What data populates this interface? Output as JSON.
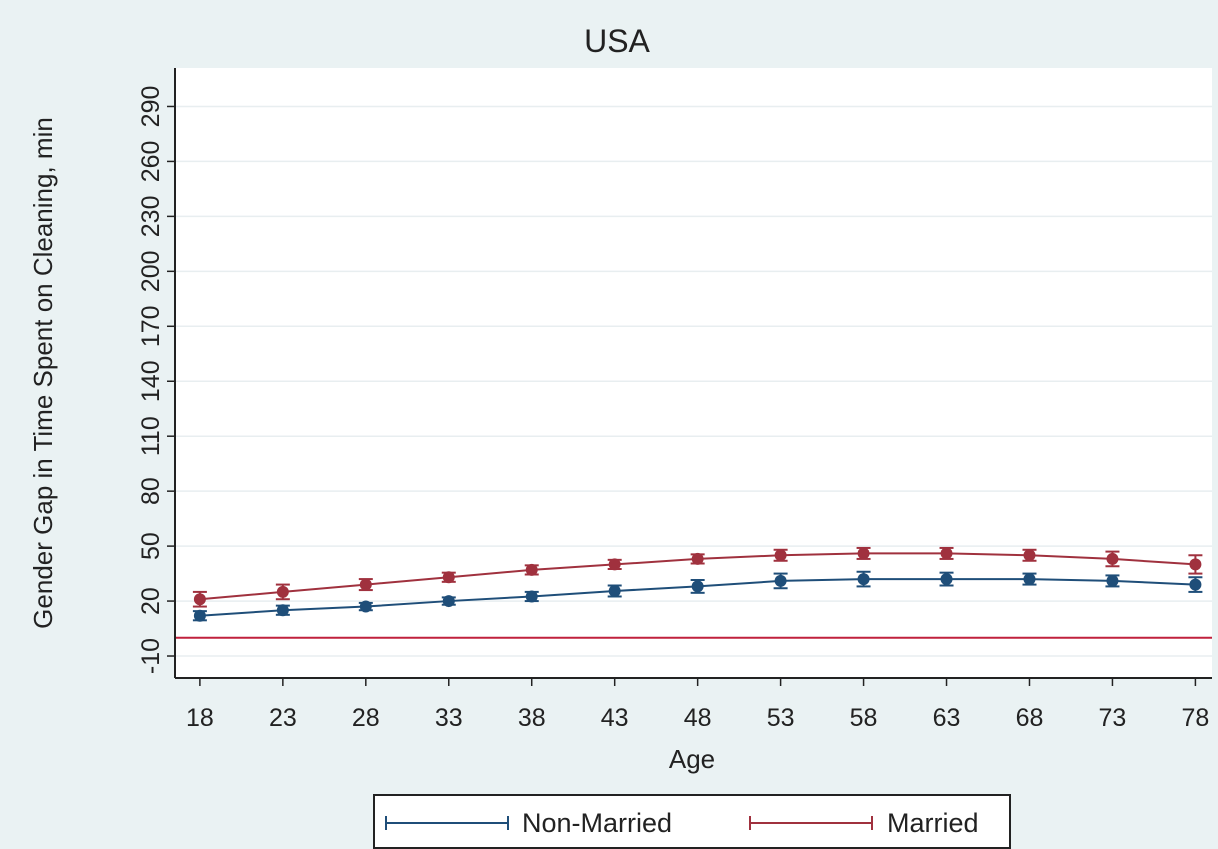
{
  "chart_data": {
    "type": "line",
    "title": "USA",
    "xlabel": "Age",
    "ylabel": "Gender Gap in Time Spent on Cleaning, min",
    "x": [
      18,
      23,
      28,
      33,
      38,
      43,
      48,
      53,
      58,
      63,
      68,
      73,
      78
    ],
    "x_tick_labels": [
      "18",
      "23",
      "28",
      "33",
      "38",
      "43",
      "48",
      "53",
      "58",
      "63",
      "68",
      "73",
      "78"
    ],
    "y_tick_labels": [
      "-10",
      "20",
      "50",
      "80",
      "110",
      "140",
      "170",
      "200",
      "230",
      "260",
      "290"
    ],
    "y_ticks": [
      -10,
      20,
      50,
      80,
      110,
      140,
      170,
      200,
      230,
      260,
      290
    ],
    "xlim": [
      16.5,
      79
    ],
    "ylim": [
      -22,
      311
    ],
    "reference_line_y": 0,
    "series": [
      {
        "name": "Non-Married",
        "values": [
          12,
          15,
          17,
          20,
          22.5,
          25.5,
          28,
          31,
          32,
          32,
          32,
          31,
          29
        ],
        "error": [
          2.5,
          2.5,
          2,
          2,
          2.5,
          3,
          3.5,
          4,
          4,
          3.5,
          3,
          3,
          4
        ],
        "color": "#1f4e79"
      },
      {
        "name": "Married",
        "values": [
          21,
          25,
          29,
          33,
          37,
          40,
          43,
          45,
          46,
          46,
          45,
          43,
          40
        ],
        "error": [
          4,
          4,
          3,
          2.5,
          2.5,
          2.5,
          2.5,
          3,
          3,
          3,
          3,
          4,
          5
        ],
        "color": "#a0313e"
      }
    ],
    "grid": true,
    "legend_position": "bottom"
  },
  "colors": {
    "background": "#eaf2f3",
    "plot_background": "#ffffff",
    "grid": "#e8eef0",
    "reference_line": "#c0213d"
  }
}
